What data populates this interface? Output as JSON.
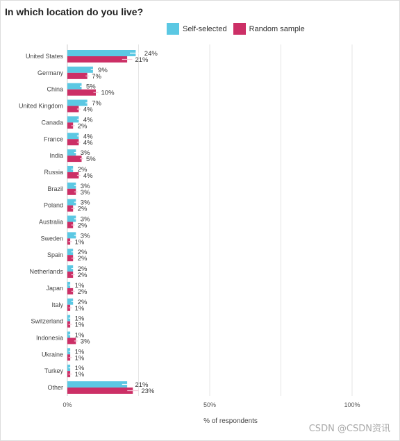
{
  "chart_data": {
    "type": "bar",
    "orientation": "horizontal",
    "title": "In which location do you live?",
    "xlabel": "% of respondents",
    "ylabel": "",
    "xlim": [
      0,
      115
    ],
    "xticks": [
      {
        "value": 0,
        "label": "0%"
      },
      {
        "value": 50,
        "label": "50%"
      },
      {
        "value": 100,
        "label": "100%"
      }
    ],
    "legend_position": "top",
    "grid": true,
    "categories": [
      "United States",
      "Germany",
      "China",
      "United Kingdom",
      "Canada",
      "France",
      "India",
      "Russia",
      "Brazil",
      "Poland",
      "Australia",
      "Sweden",
      "Spain",
      "Netherlands",
      "Japan",
      "Italy",
      "Switzerland",
      "Indonesia",
      "Ukraine",
      "Turkey",
      "Other"
    ],
    "series": [
      {
        "name": "Self-selected",
        "color": "#5bc8e3",
        "values": [
          24,
          9,
          5,
          7,
          4,
          4,
          3,
          2,
          3,
          3,
          3,
          3,
          2,
          2,
          1,
          2,
          1,
          1,
          1,
          1,
          21
        ],
        "labels": [
          "24%",
          "9%",
          "5%",
          "7%",
          "4%",
          "4%",
          "3%",
          "2%",
          "3%",
          "3%",
          "3%",
          "3%",
          "2%",
          "2%",
          "1%",
          "2%",
          "1%",
          "1%",
          "1%",
          "1%",
          "21%"
        ]
      },
      {
        "name": "Random sample",
        "color": "#cc2f66",
        "values": [
          21,
          7,
          10,
          4,
          2,
          4,
          5,
          4,
          3,
          2,
          2,
          1,
          2,
          2,
          2,
          1,
          1,
          3,
          1,
          1,
          23
        ],
        "labels": [
          "21%",
          "7%",
          "10%",
          "4%",
          "2%",
          "4%",
          "5%",
          "4%",
          "3%",
          "2%",
          "2%",
          "1%",
          "2%",
          "2%",
          "2%",
          "1%",
          "1%",
          "3%",
          "1%",
          "1%",
          "23%"
        ]
      }
    ]
  },
  "watermark": "CSDN @CSDN资讯"
}
